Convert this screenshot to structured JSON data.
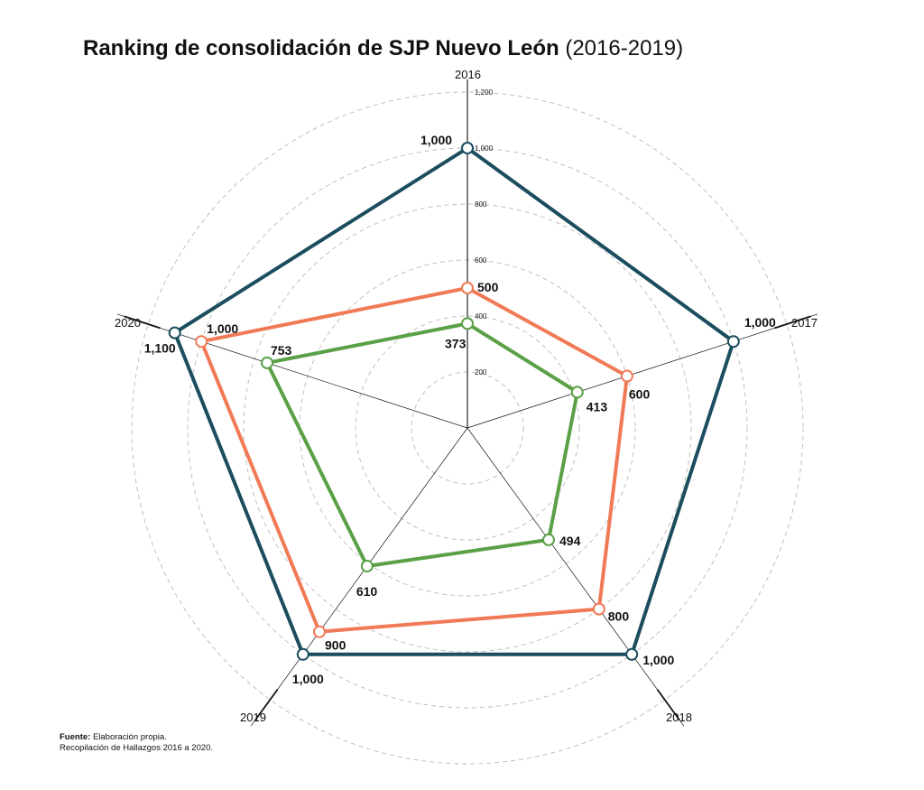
{
  "title": {
    "bold": "Ranking de consolidación de SJP Nuevo León",
    "light": "(2016-2019)"
  },
  "source": {
    "label": "Fuente:",
    "text": "Elaboración propia.",
    "line2": "Recopilación de Hallazgos 2016 a 2020."
  },
  "chart_data": {
    "type": "radar",
    "title": "Ranking de consolidación de SJP Nuevo León (2016-2019)",
    "axes": [
      "2016",
      "2017",
      "2018",
      "2019",
      "2020"
    ],
    "rlim": [
      0,
      1200
    ],
    "rings": [
      200,
      400,
      600,
      800,
      1000,
      1200
    ],
    "tick_labels": [
      "200",
      "400",
      "600",
      "800",
      "1,000",
      "1,200"
    ],
    "grid": true,
    "series": [
      {
        "values": [
          1000,
          1000,
          1000,
          1000,
          1100
        ],
        "labels": [
          "1,000",
          "1,000",
          "1,000",
          "1,000",
          "1,100"
        ],
        "color": "#1b4d5e"
      },
      {
        "values": [
          500,
          600,
          800,
          900,
          1000
        ],
        "labels": [
          "500",
          "600",
          "800",
          "900",
          "1,000"
        ],
        "color": "#f07a56"
      },
      {
        "values": [
          373,
          413,
          494,
          610,
          753
        ],
        "labels": [
          "373",
          "413",
          "494",
          "610",
          "753"
        ],
        "color": "#5aa046"
      }
    ]
  }
}
